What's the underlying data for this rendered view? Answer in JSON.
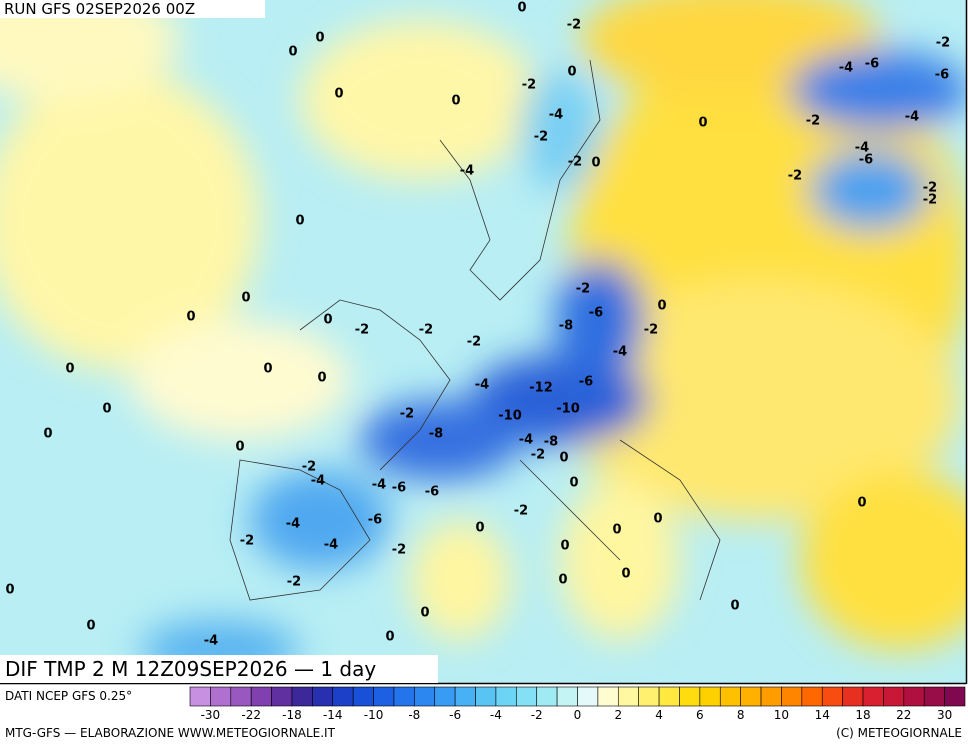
{
  "header": {
    "run": "RUN GFS 02SEP2026 00Z"
  },
  "map": {
    "title": "DIF TMP 2 M 12Z09SEP2026 — 1 day",
    "contour_labels": [
      0,
      -2,
      0,
      -2,
      0,
      -4,
      -6,
      -6,
      0,
      -2,
      0,
      0,
      -4,
      0,
      -2,
      -4,
      -2,
      -4,
      -6,
      -2,
      0,
      -4,
      -2,
      -2,
      -2,
      0,
      -2,
      0,
      -6,
      0,
      0,
      0,
      -2,
      -2,
      -8,
      -2,
      -2,
      -4,
      0,
      0,
      0,
      -4,
      -12,
      -6,
      0,
      -2,
      -10,
      -10,
      0,
      -8,
      -4,
      -8,
      0,
      -2,
      -2,
      -4,
      0,
      -4,
      -6,
      -6,
      0,
      -4,
      -6,
      -2,
      0,
      0,
      0,
      0,
      -2,
      -4,
      -2,
      0,
      0,
      -2,
      0,
      0,
      0,
      0,
      0,
      -4,
      0
    ]
  },
  "legend": {
    "source": "DATI NCEP GFS 0.25°",
    "ticks": [
      -30,
      -22,
      -18,
      -14,
      -10,
      -8,
      -6,
      -4,
      -2,
      0,
      2,
      4,
      6,
      8,
      10,
      14,
      18,
      22,
      30
    ],
    "colors": [
      "#c890e0",
      "#b070d0",
      "#9858c0",
      "#8040b0",
      "#6030a0",
      "#3c2898",
      "#2830b0",
      "#1c40c8",
      "#1850d8",
      "#1e60e4",
      "#2474ec",
      "#2c88f0",
      "#389cf4",
      "#48b0f4",
      "#58c4f4",
      "#6cd4f4",
      "#84e0f4",
      "#a0eaf4",
      "#c4f4f4",
      "#e4fafa",
      "#fffcd0",
      "#fff8a0",
      "#fff070",
      "#ffe840",
      "#ffdc10",
      "#ffd000",
      "#ffc000",
      "#ffb000",
      "#ff9c00",
      "#ff8400",
      "#ff6800",
      "#f84c10",
      "#e83020",
      "#d82030",
      "#c81838",
      "#b01040",
      "#980c48",
      "#800850"
    ]
  },
  "footer": {
    "left": "MTG-GFS — ELABORAZIONE WWW.METEOGIORNALE.IT",
    "right": "(C) METEOGIORNALE"
  }
}
